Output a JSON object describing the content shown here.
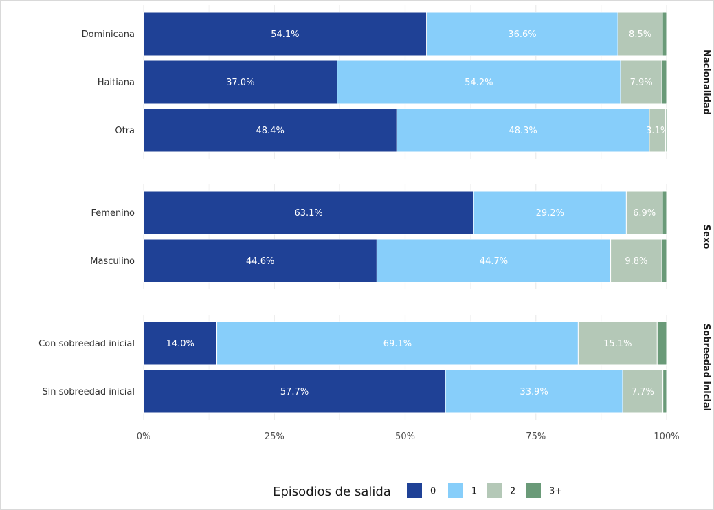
{
  "chart_data": {
    "type": "bar",
    "orientation": "horizontal",
    "stacked": true,
    "xlim": [
      0,
      100
    ],
    "x_ticks": [
      "0%",
      "25%",
      "50%",
      "75%",
      "100%"
    ],
    "grid": true,
    "legend": {
      "title": "Episodios de salida",
      "placement": "bottom",
      "entries": [
        {
          "name": "0",
          "color": "#1f4196"
        },
        {
          "name": "1",
          "color": "#87cefa"
        },
        {
          "name": "2",
          "color": "#b4c8b7"
        },
        {
          "name": "3+",
          "color": "#6a9a78"
        }
      ]
    },
    "facets": [
      {
        "label": "Nacionalidad",
        "rows": [
          {
            "category": "Dominicana",
            "values": [
              54.1,
              36.6,
              8.5,
              0.8
            ],
            "labels": [
              "54.1%",
              "36.6%",
              "8.5%",
              ""
            ]
          },
          {
            "category": "Haitiana",
            "values": [
              37.0,
              54.2,
              7.9,
              0.9
            ],
            "labels": [
              "37.0%",
              "54.2%",
              "7.9%",
              ""
            ]
          },
          {
            "category": "Otra",
            "values": [
              48.4,
              48.3,
              3.1,
              0.2
            ],
            "labels": [
              "48.4%",
              "48.3%",
              "3.1%",
              ""
            ]
          }
        ]
      },
      {
        "label": "Sexo",
        "rows": [
          {
            "category": "Femenino",
            "values": [
              63.1,
              29.2,
              6.9,
              0.8
            ],
            "labels": [
              "63.1%",
              "29.2%",
              "6.9%",
              ""
            ]
          },
          {
            "category": "Masculino",
            "values": [
              44.6,
              44.7,
              9.8,
              0.9
            ],
            "labels": [
              "44.6%",
              "44.7%",
              "9.8%",
              ""
            ]
          }
        ]
      },
      {
        "label": "Sobreedad inicial",
        "rows": [
          {
            "category": "Con sobreedad inicial",
            "values": [
              14.0,
              69.1,
              15.1,
              1.8
            ],
            "labels": [
              "14.0%",
              "69.1%",
              "15.1%",
              ""
            ]
          },
          {
            "category": "Sin sobreedad inicial",
            "values": [
              57.7,
              33.9,
              7.7,
              0.7
            ],
            "labels": [
              "57.7%",
              "33.9%",
              "7.7%",
              ""
            ]
          }
        ]
      }
    ]
  }
}
